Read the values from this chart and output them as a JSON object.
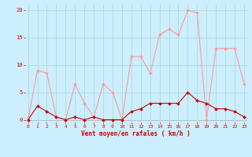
{
  "x": [
    0,
    1,
    2,
    3,
    4,
    5,
    6,
    7,
    8,
    9,
    10,
    11,
    12,
    13,
    14,
    15,
    16,
    17,
    18,
    19,
    20,
    21,
    22,
    23
  ],
  "vent_moyen": [
    0,
    2.5,
    1.5,
    0.5,
    0,
    0.5,
    0,
    0.5,
    0,
    0,
    0,
    1.5,
    2,
    3,
    3,
    3,
    3,
    5,
    3.5,
    3,
    2,
    2,
    1.5,
    0.5
  ],
  "rafales": [
    0,
    9,
    8.5,
    0.5,
    0,
    6.5,
    3,
    0.5,
    6.5,
    5,
    0,
    11.5,
    11.5,
    8.5,
    15.5,
    16.5,
    15.5,
    20,
    19.5,
    0,
    13,
    13,
    13,
    6.5
  ],
  "line_color_moyen": "#cc0000",
  "line_color_rafales": "#ff9999",
  "bg_color": "#cceeff",
  "grid_color": "#aadddd",
  "text_color": "#cc0000",
  "xlabel": "Vent moyen/en rafales ( km/h )",
  "yticks": [
    0,
    5,
    10,
    15,
    20
  ],
  "ylim": [
    -0.5,
    21
  ],
  "xlim": [
    -0.3,
    23.3
  ]
}
